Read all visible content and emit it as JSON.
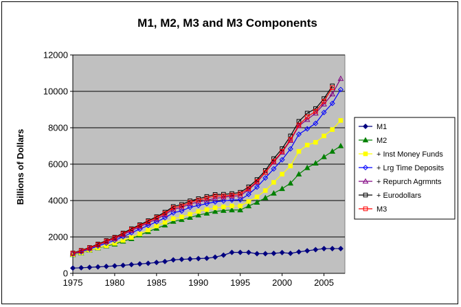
{
  "chart_data": {
    "type": "line",
    "title": "M1, M2, M3 and M3 Components",
    "ylabel": "Billions of Dollars",
    "xlabel": "",
    "xlim": [
      1975,
      2007.5
    ],
    "ylim": [
      0,
      12000
    ],
    "x_ticks": [
      1975,
      1980,
      1985,
      1990,
      1995,
      2000,
      2005
    ],
    "y_ticks": [
      0,
      2000,
      4000,
      6000,
      8000,
      10000,
      12000
    ],
    "grid": "horizontal",
    "legend": "right",
    "plot_background": "#c0c0c0",
    "x": [
      1975,
      1976,
      1977,
      1978,
      1979,
      1980,
      1981,
      1982,
      1983,
      1984,
      1985,
      1986,
      1987,
      1988,
      1989,
      1990,
      1991,
      1992,
      1993,
      1994,
      1995,
      1996,
      1997,
      1998,
      1999,
      2000,
      2001,
      2002,
      2003,
      2004,
      2005,
      2006,
      2007
    ],
    "series": [
      {
        "name": "M1",
        "color": "#000080",
        "marker": "diamond-filled",
        "values": [
          290,
          305,
          330,
          355,
          380,
          410,
          440,
          480,
          520,
          550,
          600,
          650,
          740,
          770,
          790,
          810,
          830,
          890,
          1000,
          1150,
          1150,
          1150,
          1080,
          1080,
          1100,
          1140,
          1100,
          1180,
          1240,
          1300,
          1360,
          1360,
          1360
        ]
      },
      {
        "name": "M2",
        "color": "#008000",
        "marker": "triangle-filled",
        "values": [
          1020,
          1120,
          1270,
          1390,
          1500,
          1600,
          1760,
          1900,
          2100,
          2290,
          2470,
          2650,
          2850,
          2950,
          3070,
          3200,
          3300,
          3400,
          3450,
          3480,
          3480,
          3700,
          3900,
          4150,
          4400,
          4650,
          4950,
          5450,
          5800,
          6050,
          6400,
          6700,
          7000
        ]
      },
      {
        "name": "+ Inst Money Funds",
        "color": "#ffff00",
        "marker": "square-filled",
        "values": [
          1030,
          1130,
          1280,
          1400,
          1520,
          1650,
          1810,
          1970,
          2170,
          2380,
          2600,
          2800,
          3000,
          3100,
          3250,
          3400,
          3500,
          3600,
          3650,
          3700,
          3700,
          3950,
          4200,
          4550,
          5000,
          5450,
          5900,
          6700,
          7050,
          7200,
          7550,
          7900,
          8400
        ]
      },
      {
        "name": "+ Lrg Time Deposits",
        "color": "#0000ff",
        "marker": "diamond-open",
        "values": [
          1060,
          1180,
          1330,
          1500,
          1660,
          1810,
          2010,
          2230,
          2430,
          2630,
          2830,
          3050,
          3330,
          3430,
          3630,
          3730,
          3830,
          3930,
          3980,
          4030,
          4040,
          4340,
          4740,
          5240,
          5740,
          6240,
          6840,
          7640,
          7940,
          8240,
          8840,
          9340,
          10100
        ]
      },
      {
        "name": "+ Repurch Agrmnts",
        "color": "#800080",
        "marker": "triangle-open",
        "values": [
          1090,
          1220,
          1380,
          1560,
          1740,
          1900,
          2120,
          2350,
          2560,
          2770,
          2980,
          3220,
          3520,
          3620,
          3820,
          3920,
          4020,
          4120,
          4180,
          4240,
          4260,
          4600,
          5000,
          5550,
          6100,
          6650,
          7300,
          8100,
          8450,
          8800,
          9300,
          9850,
          10700
        ]
      },
      {
        "name": "+ Eurodollars",
        "color": "#000000",
        "marker": "square-open",
        "values": [
          1120,
          1260,
          1420,
          1610,
          1800,
          1980,
          2210,
          2450,
          2670,
          2890,
          3110,
          3360,
          3670,
          3780,
          3980,
          4100,
          4220,
          4330,
          4340,
          4380,
          4450,
          4750,
          5150,
          5650,
          6300,
          6850,
          7550,
          8350,
          8800,
          9050,
          9600,
          10300,
          null
        ]
      },
      {
        "name": "M3",
        "color": "#ff0000",
        "marker": "square-open",
        "values": [
          1100,
          1240,
          1400,
          1580,
          1770,
          1950,
          2170,
          2410,
          2620,
          2840,
          3060,
          3300,
          3600,
          3700,
          3900,
          4020,
          4140,
          4250,
          4250,
          4300,
          4370,
          4650,
          5050,
          5550,
          6150,
          6700,
          7350,
          8150,
          8600,
          8900,
          9450,
          10200,
          null
        ]
      }
    ]
  }
}
